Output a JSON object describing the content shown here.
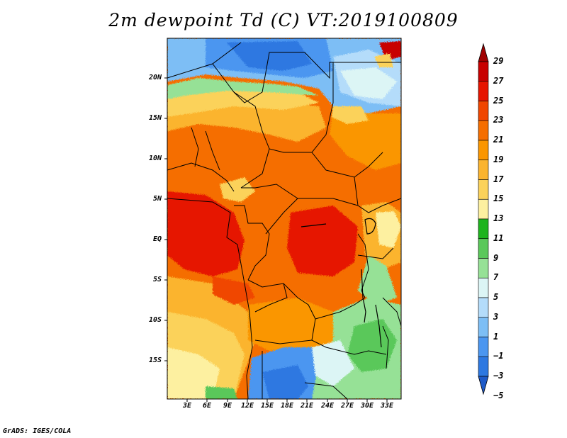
{
  "title": "2m dewpoint Td (C) VT:2019100809",
  "credit": "GrADS: IGES/COLA",
  "map": {
    "lat_ticks": [
      "20N",
      "15N",
      "10N",
      "5N",
      "EQ",
      "5S",
      "10S",
      "15S"
    ],
    "lon_ticks": [
      "3E",
      "6E",
      "9E",
      "12E",
      "15E",
      "18E",
      "21E",
      "24E",
      "27E",
      "30E",
      "33E"
    ]
  },
  "colorbar": {
    "labels": [
      "29",
      "27",
      "25",
      "23",
      "21",
      "19",
      "17",
      "15",
      "13",
      "11",
      "9",
      "7",
      "5",
      "3",
      "1",
      "−1",
      "−3",
      "−5"
    ],
    "colors": [
      "#a00000",
      "#c80000",
      "#e61400",
      "#f04600",
      "#f56e00",
      "#fa9600",
      "#fbb42e",
      "#fbd25a",
      "#fdf0a0",
      "#1eb41e",
      "#5ac85a",
      "#96e196",
      "#dcf5f5",
      "#b4dcfa",
      "#7dbef5",
      "#4b96f0",
      "#2d78e1",
      "#1e5ac8"
    ]
  }
}
